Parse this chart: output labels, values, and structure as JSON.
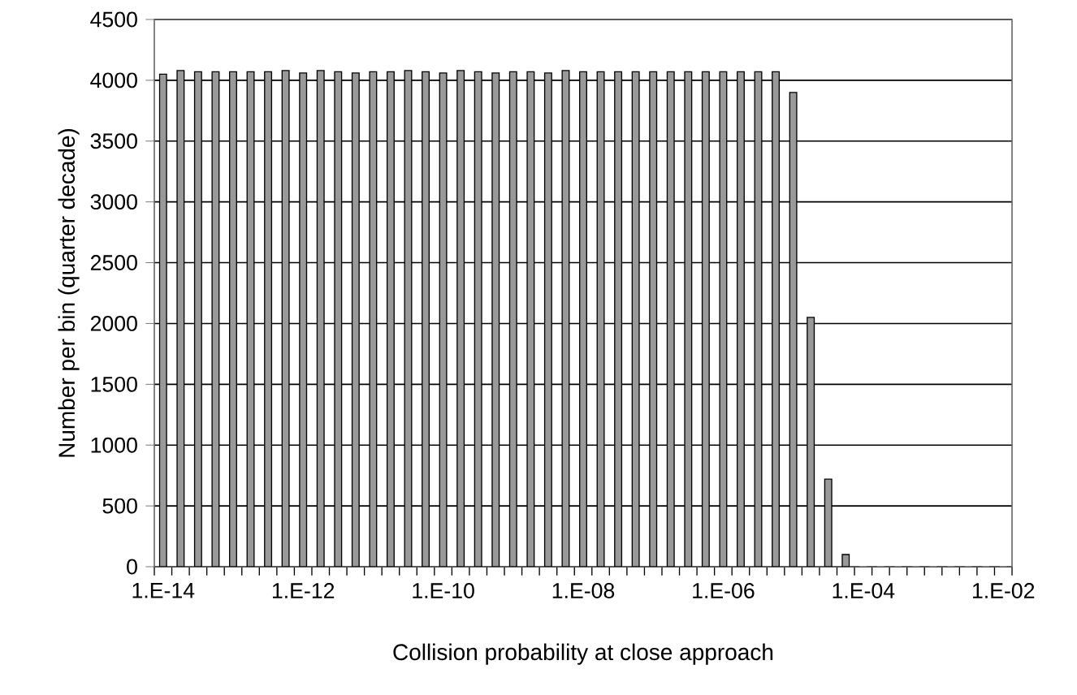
{
  "chart_data": {
    "type": "bar",
    "xlabel": "Collision probability at close approach",
    "ylabel": "Number per bin (quarter decade)",
    "categories": [
      "1.E-14",
      null,
      null,
      null,
      null,
      null,
      null,
      null,
      "1.E-12",
      null,
      null,
      null,
      null,
      null,
      null,
      null,
      "1.E-10",
      null,
      null,
      null,
      null,
      null,
      null,
      null,
      "1.E-08",
      null,
      null,
      null,
      null,
      null,
      null,
      null,
      "1.E-06",
      null,
      null,
      null,
      null,
      null,
      null,
      null,
      "1.E-04",
      null,
      null,
      null,
      null,
      null,
      null,
      null,
      "1.E-02"
    ],
    "values": [
      4050,
      4080,
      4070,
      4070,
      4070,
      4070,
      4070,
      4080,
      4060,
      4080,
      4070,
      4060,
      4070,
      4070,
      4080,
      4070,
      4060,
      4080,
      4070,
      4060,
      4070,
      4070,
      4060,
      4080,
      4070,
      4070,
      4070,
      4070,
      4070,
      4070,
      4070,
      4070,
      4070,
      4070,
      4070,
      4070,
      3900,
      2050,
      720,
      100,
      0,
      0,
      0,
      0,
      0,
      0,
      0,
      0,
      0
    ],
    "color": "#999999",
    "ylim": [
      0,
      4500
    ],
    "yticks": [
      0,
      500,
      1000,
      1500,
      2000,
      2500,
      3000,
      3500,
      4000,
      4500
    ],
    "grid": "y",
    "legend": false
  }
}
